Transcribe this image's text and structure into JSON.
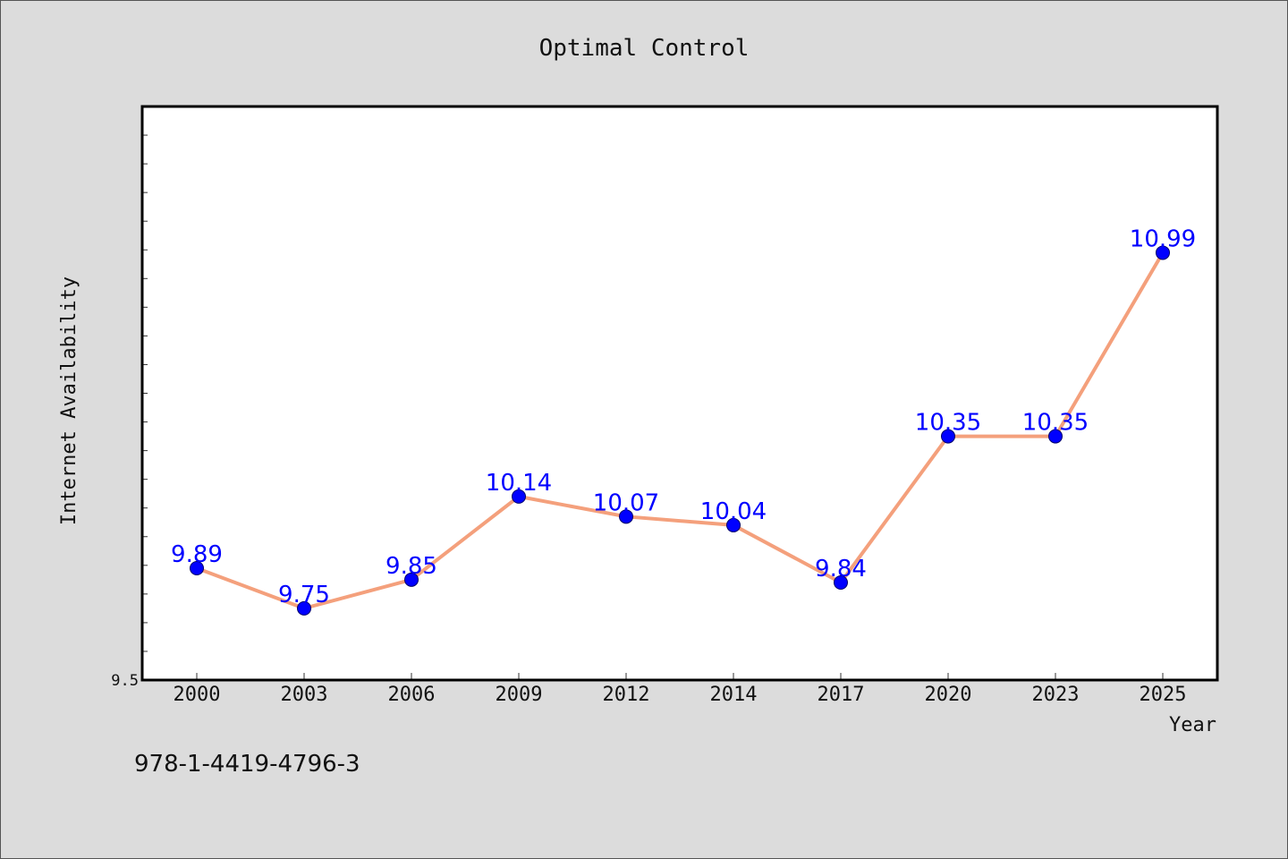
{
  "colors": {
    "background": "#dcdcdc",
    "plot_background": "#ffffff",
    "line": "#f4a07c",
    "marker": "#0000ff",
    "label": "#0000ff"
  },
  "chart_data": {
    "type": "line",
    "title": "Optimal Control",
    "xlabel": "Year",
    "ylabel": "Internet Availability",
    "categories": [
      "2000",
      "2003",
      "2006",
      "2009",
      "2012",
      "2014",
      "2017",
      "2020",
      "2023",
      "2025"
    ],
    "series": [
      {
        "values": [
          9.89,
          9.75,
          9.85,
          10.14,
          10.07,
          10.04,
          9.84,
          10.35,
          10.35,
          10.99
        ]
      }
    ],
    "data_labels": [
      "9.89",
      "9.75",
      "9.85",
      "10.14",
      "10.07",
      "10.04",
      "9.84",
      "10.35",
      "10.35",
      "10.99"
    ],
    "ylim": [
      9.5,
      11.5
    ],
    "y_tick_labels": [
      "9.5"
    ],
    "y_minor_step": 0.1,
    "grid": false,
    "legend": "none"
  },
  "footer": {
    "isbn": "978-1-4419-4796-3"
  }
}
